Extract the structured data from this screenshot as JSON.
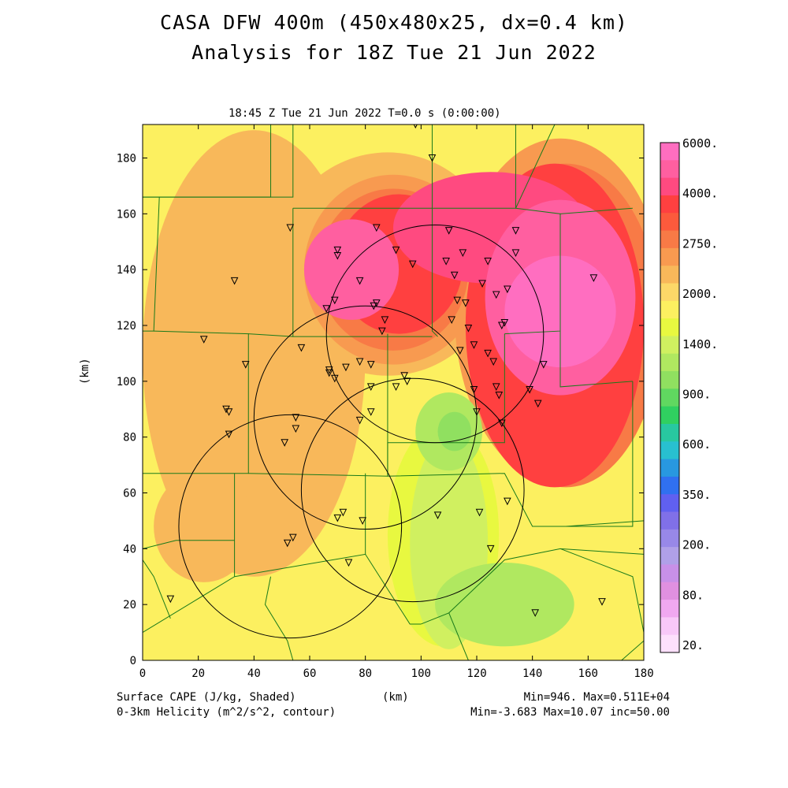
{
  "titles": {
    "line1": "CASA DFW 400m (450x480x25, dx=0.4 km)",
    "line2": "Analysis for 18Z Tue 21 Jun 2022",
    "subtitle": "18:45 Z Tue 21 Jun 2022   T=0.0 s (0:00:00)"
  },
  "axes": {
    "x_ticks": [
      "0",
      "20",
      "40",
      "60",
      "80",
      "100",
      "120",
      "140",
      "160",
      "180"
    ],
    "y_ticks": [
      "0",
      "20",
      "40",
      "60",
      "80",
      "100",
      "120",
      "140",
      "160",
      "180"
    ],
    "x_unit": "(km)",
    "y_unit": "(km)",
    "x_range": [
      0,
      180
    ],
    "y_range": [
      0,
      192
    ]
  },
  "footer": {
    "left1": "Surface CAPE (J/kg, Shaded)",
    "left2": "0-3km Helicity (m^2/s^2, contour)",
    "center": "(km)",
    "right1": "Min=946. Max=0.511E+04",
    "right2": "Min=-3.683 Max=10.07 inc=50.00"
  },
  "colorbar": {
    "labels": [
      "6000.",
      "4000.",
      "2750.",
      "2000.",
      "1400.",
      "900.",
      "600.",
      "350.",
      "200.",
      "80.",
      "20."
    ],
    "colors": [
      "#ff6ec0",
      "#ff5fa0",
      "#ff4a80",
      "#ff4040",
      "#fc5a3c",
      "#f87a46",
      "#f89a50",
      "#f8b85a",
      "#fcd868",
      "#fcf060",
      "#e8f840",
      "#d0f060",
      "#b0e860",
      "#90e060",
      "#60d860",
      "#30d060",
      "#28c8a0",
      "#28c0d0",
      "#2898e0",
      "#3070f0",
      "#6060f0",
      "#8070e8",
      "#9888e8",
      "#b0a0e8",
      "#c890e8",
      "#e090e0",
      "#f0a8f0",
      "#f8c8f8",
      "#fde0fc"
    ]
  },
  "cape_field": {
    "background": "#fcf060",
    "regions": [
      {
        "color": "#f8b85a",
        "cx": 40,
        "cy": 110,
        "rx": 40,
        "ry": 80
      },
      {
        "color": "#f8b85a",
        "cx": 22,
        "cy": 48,
        "rx": 18,
        "ry": 20
      },
      {
        "color": "#f8b85a",
        "cx": 88,
        "cy": 142,
        "rx": 40,
        "ry": 40
      },
      {
        "color": "#f89a50",
        "cx": 90,
        "cy": 140,
        "rx": 32,
        "ry": 34
      },
      {
        "color": "#f89a50",
        "cx": 150,
        "cy": 125,
        "rx": 38,
        "ry": 62
      },
      {
        "color": "#f87a46",
        "cx": 90,
        "cy": 140,
        "rx": 27,
        "ry": 29
      },
      {
        "color": "#f87a46",
        "cx": 152,
        "cy": 120,
        "rx": 34,
        "ry": 58
      },
      {
        "color": "#ff4040",
        "cx": 92,
        "cy": 142,
        "rx": 23,
        "ry": 25
      },
      {
        "color": "#ff4040",
        "cx": 148,
        "cy": 120,
        "rx": 32,
        "ry": 58
      },
      {
        "color": "#ff4a80",
        "cx": 125,
        "cy": 155,
        "rx": 35,
        "ry": 20
      },
      {
        "color": "#ff5fa0",
        "cx": 75,
        "cy": 140,
        "rx": 17,
        "ry": 18
      },
      {
        "color": "#ff5fa0",
        "cx": 150,
        "cy": 130,
        "rx": 27,
        "ry": 35
      },
      {
        "color": "#ff6ec0",
        "cx": 150,
        "cy": 125,
        "rx": 20,
        "ry": 20
      },
      {
        "color": "#e8f840",
        "cx": 108,
        "cy": 45,
        "rx": 20,
        "ry": 40
      },
      {
        "color": "#d0f060",
        "cx": 110,
        "cy": 42,
        "rx": 14,
        "ry": 38
      },
      {
        "color": "#b0e860",
        "cx": 110,
        "cy": 82,
        "rx": 12,
        "ry": 14
      },
      {
        "color": "#90e060",
        "cx": 112,
        "cy": 82,
        "rx": 6,
        "ry": 7
      },
      {
        "color": "#b0e860",
        "cx": 130,
        "cy": 20,
        "rx": 25,
        "ry": 15
      }
    ]
  },
  "radar_circles_km": [
    {
      "cx": 105,
      "cy": 117,
      "r": 39
    },
    {
      "cx": 80,
      "cy": 87,
      "r": 40
    },
    {
      "cx": 97,
      "cy": 61,
      "r": 40
    },
    {
      "cx": 53,
      "cy": 48,
      "r": 40
    }
  ],
  "county_lines_km": [
    [
      [
        0,
        166
      ],
      [
        46,
        166
      ],
      [
        46,
        192
      ]
    ],
    [
      [
        0,
        166
      ],
      [
        6,
        166
      ],
      [
        4,
        118
      ],
      [
        0,
        118
      ]
    ],
    [
      [
        6,
        166
      ],
      [
        54,
        166
      ],
      [
        54,
        192
      ]
    ],
    [
      [
        54,
        162
      ],
      [
        104,
        162
      ],
      [
        104,
        192
      ]
    ],
    [
      [
        54,
        162
      ],
      [
        54,
        116
      ],
      [
        98,
        116
      ],
      [
        104,
        116
      ]
    ],
    [
      [
        104,
        162
      ],
      [
        104,
        118
      ],
      [
        106,
        116
      ]
    ],
    [
      [
        4,
        118
      ],
      [
        38,
        117
      ],
      [
        38,
        67
      ],
      [
        0,
        67
      ]
    ],
    [
      [
        38,
        117
      ],
      [
        54,
        116
      ]
    ],
    [
      [
        38,
        67
      ],
      [
        88,
        66
      ],
      [
        88,
        117
      ]
    ],
    [
      [
        88,
        66
      ],
      [
        88,
        78
      ],
      [
        130,
        78
      ],
      [
        130,
        117
      ]
    ],
    [
      [
        104,
        162
      ],
      [
        134,
        162
      ],
      [
        134,
        192
      ]
    ],
    [
      [
        134,
        162
      ],
      [
        150,
        160
      ],
      [
        150,
        118
      ],
      [
        130,
        117
      ]
    ],
    [
      [
        150,
        160
      ],
      [
        176,
        162
      ]
    ],
    [
      [
        150,
        118
      ],
      [
        150,
        98
      ],
      [
        176,
        100
      ]
    ],
    [
      [
        134,
        162
      ],
      [
        148,
        192
      ]
    ],
    [
      [
        176,
        100
      ],
      [
        176,
        48
      ],
      [
        140,
        48
      ],
      [
        130,
        67
      ],
      [
        88,
        66
      ]
    ],
    [
      [
        33,
        67
      ],
      [
        33,
        30
      ],
      [
        0,
        10
      ]
    ],
    [
      [
        33,
        30
      ],
      [
        80,
        38
      ],
      [
        96,
        13
      ],
      [
        100,
        13
      ]
    ],
    [
      [
        33,
        43
      ],
      [
        12,
        43
      ],
      [
        0,
        40
      ]
    ],
    [
      [
        80,
        38
      ],
      [
        80,
        67
      ]
    ],
    [
      [
        46,
        30
      ],
      [
        44,
        20
      ],
      [
        52,
        7
      ],
      [
        54,
        0
      ]
    ],
    [
      [
        100,
        13
      ],
      [
        110,
        17
      ],
      [
        130,
        36
      ],
      [
        150,
        40
      ],
      [
        180,
        38
      ]
    ],
    [
      [
        110,
        17
      ],
      [
        117,
        0
      ]
    ],
    [
      [
        150,
        40
      ],
      [
        176,
        30
      ],
      [
        180,
        10
      ]
    ],
    [
      [
        0,
        36
      ],
      [
        4,
        30
      ],
      [
        10,
        15
      ]
    ],
    [
      [
        172,
        0
      ],
      [
        180,
        7
      ]
    ],
    [
      [
        152,
        48
      ],
      [
        180,
        50
      ]
    ]
  ],
  "radar_sites_km": [
    [
      53,
      155
    ],
    [
      70,
      147
    ],
    [
      84,
      155
    ],
    [
      70,
      145
    ],
    [
      78,
      136
    ],
    [
      91,
      147
    ],
    [
      97,
      142
    ],
    [
      110,
      154
    ],
    [
      109,
      143
    ],
    [
      115,
      146
    ],
    [
      112,
      138
    ],
    [
      124,
      143
    ],
    [
      134,
      154
    ],
    [
      122,
      135
    ],
    [
      134,
      146
    ],
    [
      127,
      131
    ],
    [
      131,
      133
    ],
    [
      66,
      126
    ],
    [
      69,
      129
    ],
    [
      83,
      127
    ],
    [
      84,
      128
    ],
    [
      87,
      122
    ],
    [
      113,
      129
    ],
    [
      116,
      128
    ],
    [
      111,
      122
    ],
    [
      117,
      119
    ],
    [
      129,
      120
    ],
    [
      130,
      121
    ],
    [
      86,
      118
    ],
    [
      22,
      115
    ],
    [
      57,
      112
    ],
    [
      78,
      107
    ],
    [
      73,
      105
    ],
    [
      67,
      104
    ],
    [
      67,
      103
    ],
    [
      69,
      101
    ],
    [
      82,
      106
    ],
    [
      94,
      102
    ],
    [
      95,
      100
    ],
    [
      91,
      98
    ],
    [
      82,
      98
    ],
    [
      119,
      97
    ],
    [
      127,
      98
    ],
    [
      114,
      111
    ],
    [
      119,
      113
    ],
    [
      124,
      110
    ],
    [
      126,
      107
    ],
    [
      139,
      97
    ],
    [
      144,
      106
    ],
    [
      129,
      85
    ],
    [
      128,
      95
    ],
    [
      142,
      92
    ],
    [
      120,
      89
    ],
    [
      98,
      192
    ],
    [
      104,
      180
    ],
    [
      30,
      90
    ],
    [
      31,
      89
    ],
    [
      31,
      81
    ],
    [
      55,
      87
    ],
    [
      55,
      83
    ],
    [
      51,
      78
    ],
    [
      78,
      86
    ],
    [
      82,
      89
    ],
    [
      72,
      53
    ],
    [
      70,
      51
    ],
    [
      79,
      50
    ],
    [
      106,
      52
    ],
    [
      121,
      53
    ],
    [
      131,
      57
    ],
    [
      125,
      40
    ],
    [
      52,
      42
    ],
    [
      54,
      44
    ],
    [
      74,
      35
    ],
    [
      10,
      22
    ],
    [
      141,
      17
    ],
    [
      165,
      21
    ],
    [
      162,
      137
    ],
    [
      37,
      106
    ],
    [
      33,
      136
    ]
  ]
}
